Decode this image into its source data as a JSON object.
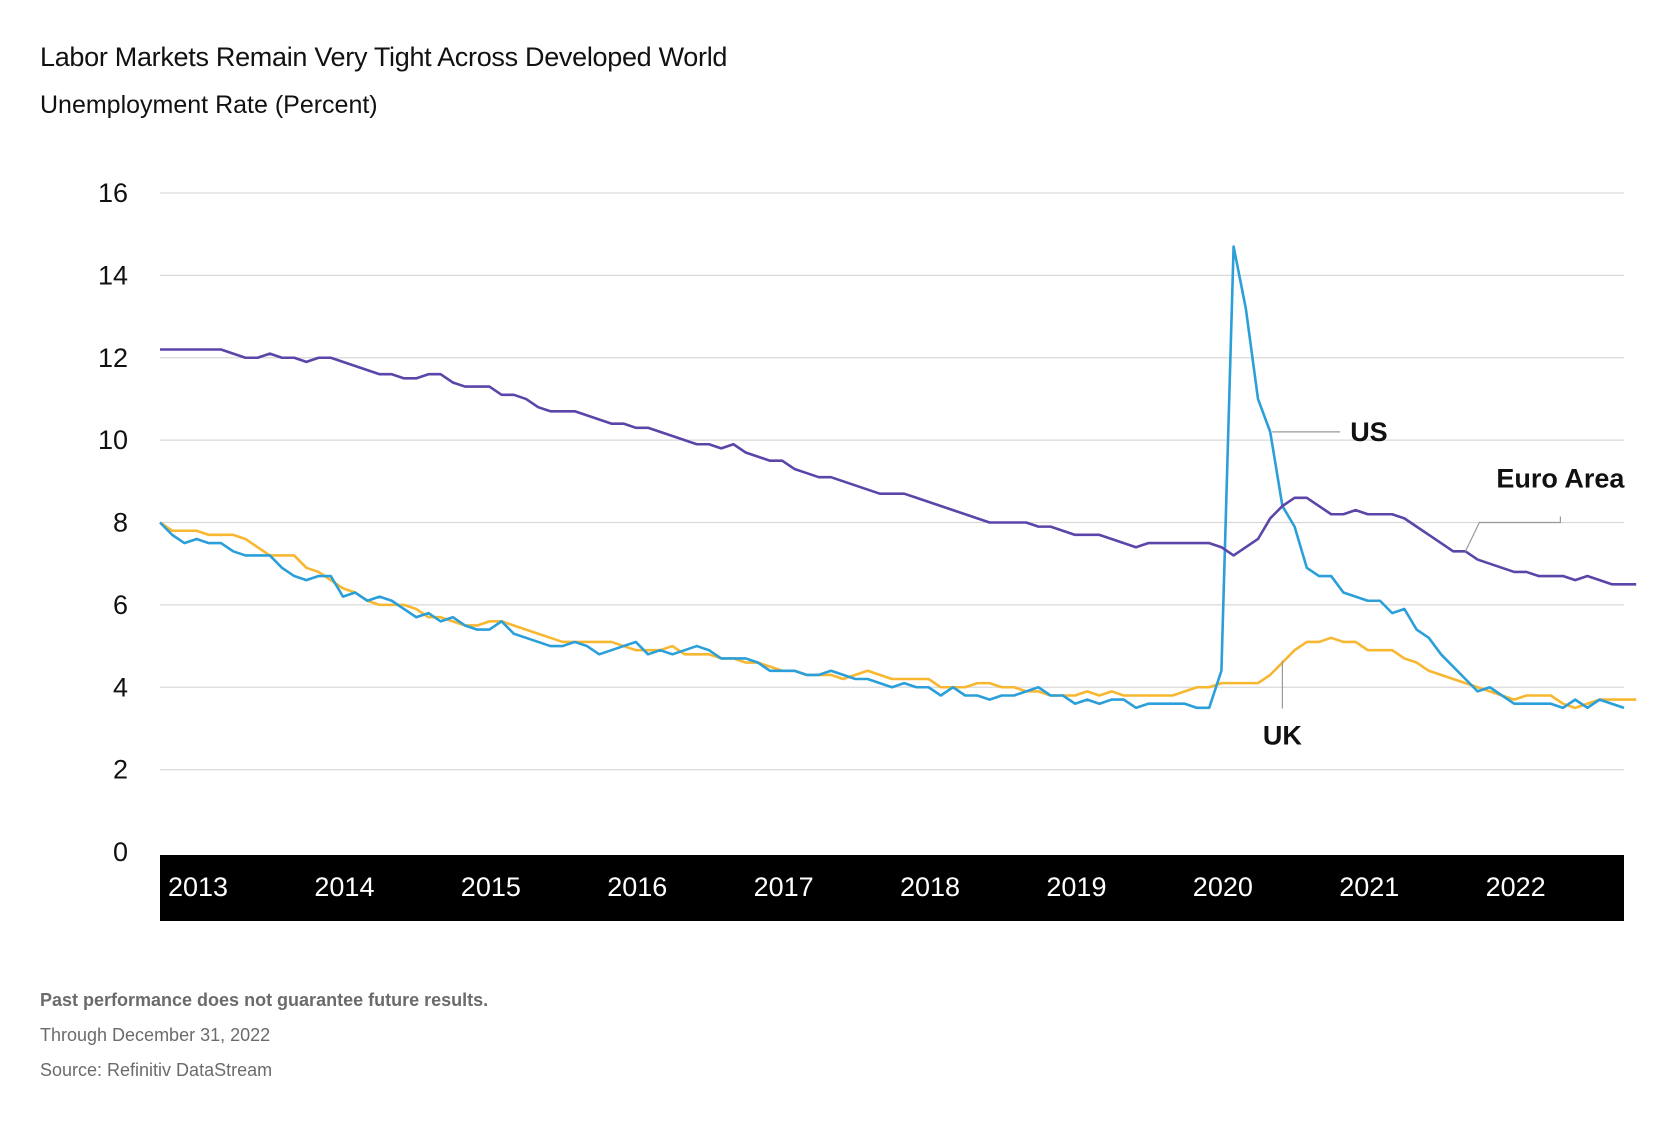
{
  "title": "Labor Markets Remain Very Tight Across Developed World",
  "subtitle": "Unemployment Rate (Percent)",
  "footnotes": {
    "disclaimer": "Past performance does not guarantee future results.",
    "through": "Through December 31, 2022",
    "source": "Source: Refinitiv DataStream"
  },
  "chart_data": {
    "type": "line",
    "title": "Labor Markets Remain Very Tight Across Developed World",
    "ylabel": "Unemployment Rate (Percent)",
    "xlabel": "",
    "x_start": "2013-01",
    "x_frequency": "monthly",
    "x_tick_labels": [
      "2013",
      "2014",
      "2015",
      "2016",
      "2017",
      "2018",
      "2019",
      "2020",
      "2021",
      "2022"
    ],
    "y_ticks": [
      0,
      2,
      4,
      6,
      8,
      10,
      12,
      14,
      16
    ],
    "ylim": [
      0,
      16
    ],
    "grid": true,
    "legend": "direct labels",
    "colors": {
      "US": "#2b9fd9",
      "Euro Area": "#5b45a8",
      "UK": "#f7b731",
      "axis_band": "#000000",
      "grid": "#d9d9d9"
    },
    "series": [
      {
        "name": "US",
        "values": [
          8.0,
          7.7,
          7.5,
          7.6,
          7.5,
          7.5,
          7.3,
          7.2,
          7.2,
          7.2,
          6.9,
          6.7,
          6.6,
          6.7,
          6.7,
          6.2,
          6.3,
          6.1,
          6.2,
          6.1,
          5.9,
          5.7,
          5.8,
          5.6,
          5.7,
          5.5,
          5.4,
          5.4,
          5.6,
          5.3,
          5.2,
          5.1,
          5.0,
          5.0,
          5.1,
          5.0,
          4.8,
          4.9,
          5.0,
          5.1,
          4.8,
          4.9,
          4.8,
          4.9,
          5.0,
          4.9,
          4.7,
          4.7,
          4.7,
          4.6,
          4.4,
          4.4,
          4.4,
          4.3,
          4.3,
          4.4,
          4.3,
          4.2,
          4.2,
          4.1,
          4.0,
          4.1,
          4.0,
          4.0,
          3.8,
          4.0,
          3.8,
          3.8,
          3.7,
          3.8,
          3.8,
          3.9,
          4.0,
          3.8,
          3.8,
          3.6,
          3.7,
          3.6,
          3.7,
          3.7,
          3.5,
          3.6,
          3.6,
          3.6,
          3.6,
          3.5,
          3.5,
          4.4,
          14.7,
          13.2,
          11.0,
          10.2,
          8.4,
          7.9,
          6.9,
          6.7,
          6.7,
          6.3,
          6.2,
          6.1,
          6.1,
          5.8,
          5.9,
          5.4,
          5.2,
          4.8,
          4.5,
          4.2,
          3.9,
          4.0,
          3.8,
          3.6,
          3.6,
          3.6,
          3.6,
          3.5,
          3.7,
          3.5,
          3.7,
          3.6,
          3.5
        ]
      },
      {
        "name": "Euro Area",
        "values": [
          12.2,
          12.2,
          12.2,
          12.2,
          12.2,
          12.2,
          12.1,
          12.0,
          12.0,
          12.1,
          12.0,
          12.0,
          11.9,
          12.0,
          12.0,
          11.9,
          11.8,
          11.7,
          11.6,
          11.6,
          11.5,
          11.5,
          11.6,
          11.6,
          11.4,
          11.3,
          11.3,
          11.3,
          11.1,
          11.1,
          11.0,
          10.8,
          10.7,
          10.7,
          10.7,
          10.6,
          10.5,
          10.4,
          10.4,
          10.3,
          10.3,
          10.2,
          10.1,
          10.0,
          9.9,
          9.9,
          9.8,
          9.9,
          9.7,
          9.6,
          9.5,
          9.5,
          9.3,
          9.2,
          9.1,
          9.1,
          9.0,
          8.9,
          8.8,
          8.7,
          8.7,
          8.7,
          8.6,
          8.5,
          8.4,
          8.3,
          8.2,
          8.1,
          8.0,
          8.0,
          8.0,
          8.0,
          7.9,
          7.9,
          7.8,
          7.7,
          7.7,
          7.7,
          7.6,
          7.5,
          7.4,
          7.5,
          7.5,
          7.5,
          7.5,
          7.5,
          7.5,
          7.4,
          7.2,
          7.4,
          7.6,
          8.1,
          8.4,
          8.6,
          8.6,
          8.4,
          8.2,
          8.2,
          8.3,
          8.2,
          8.2,
          8.2,
          8.1,
          7.9,
          7.7,
          7.5,
          7.3,
          7.3,
          7.1,
          7.0,
          6.9,
          6.8,
          6.8,
          6.7,
          6.7,
          6.7,
          6.6,
          6.7,
          6.6,
          6.5,
          6.5,
          6.5
        ]
      },
      {
        "name": "UK",
        "values": [
          8.0,
          7.8,
          7.8,
          7.8,
          7.7,
          7.7,
          7.7,
          7.6,
          7.4,
          7.2,
          7.2,
          7.2,
          6.9,
          6.8,
          6.6,
          6.4,
          6.3,
          6.1,
          6.0,
          6.0,
          6.0,
          5.9,
          5.7,
          5.7,
          5.6,
          5.5,
          5.5,
          5.6,
          5.6,
          5.5,
          5.4,
          5.3,
          5.2,
          5.1,
          5.1,
          5.1,
          5.1,
          5.1,
          5.0,
          4.9,
          4.9,
          4.9,
          5.0,
          4.8,
          4.8,
          4.8,
          4.7,
          4.7,
          4.6,
          4.6,
          4.5,
          4.4,
          4.4,
          4.3,
          4.3,
          4.3,
          4.2,
          4.3,
          4.4,
          4.3,
          4.2,
          4.2,
          4.2,
          4.2,
          4.0,
          4.0,
          4.0,
          4.1,
          4.1,
          4.0,
          4.0,
          3.9,
          3.9,
          3.8,
          3.8,
          3.8,
          3.9,
          3.8,
          3.9,
          3.8,
          3.8,
          3.8,
          3.8,
          3.8,
          3.9,
          4.0,
          4.0,
          4.1,
          4.1,
          4.1,
          4.1,
          4.3,
          4.6,
          4.9,
          5.1,
          5.1,
          5.2,
          5.1,
          5.1,
          4.9,
          4.9,
          4.9,
          4.7,
          4.6,
          4.4,
          4.3,
          4.2,
          4.1,
          4.0,
          3.9,
          3.8,
          3.7,
          3.8,
          3.8,
          3.8,
          3.6,
          3.5,
          3.6,
          3.7,
          3.7,
          3.7,
          3.7
        ]
      }
    ],
    "annotations": [
      {
        "series": "US",
        "label": "US",
        "at_index": 91
      },
      {
        "series": "Euro Area",
        "label": "Euro Area",
        "at_index": 107
      },
      {
        "series": "UK",
        "label": "UK",
        "at_index": 92
      }
    ]
  }
}
